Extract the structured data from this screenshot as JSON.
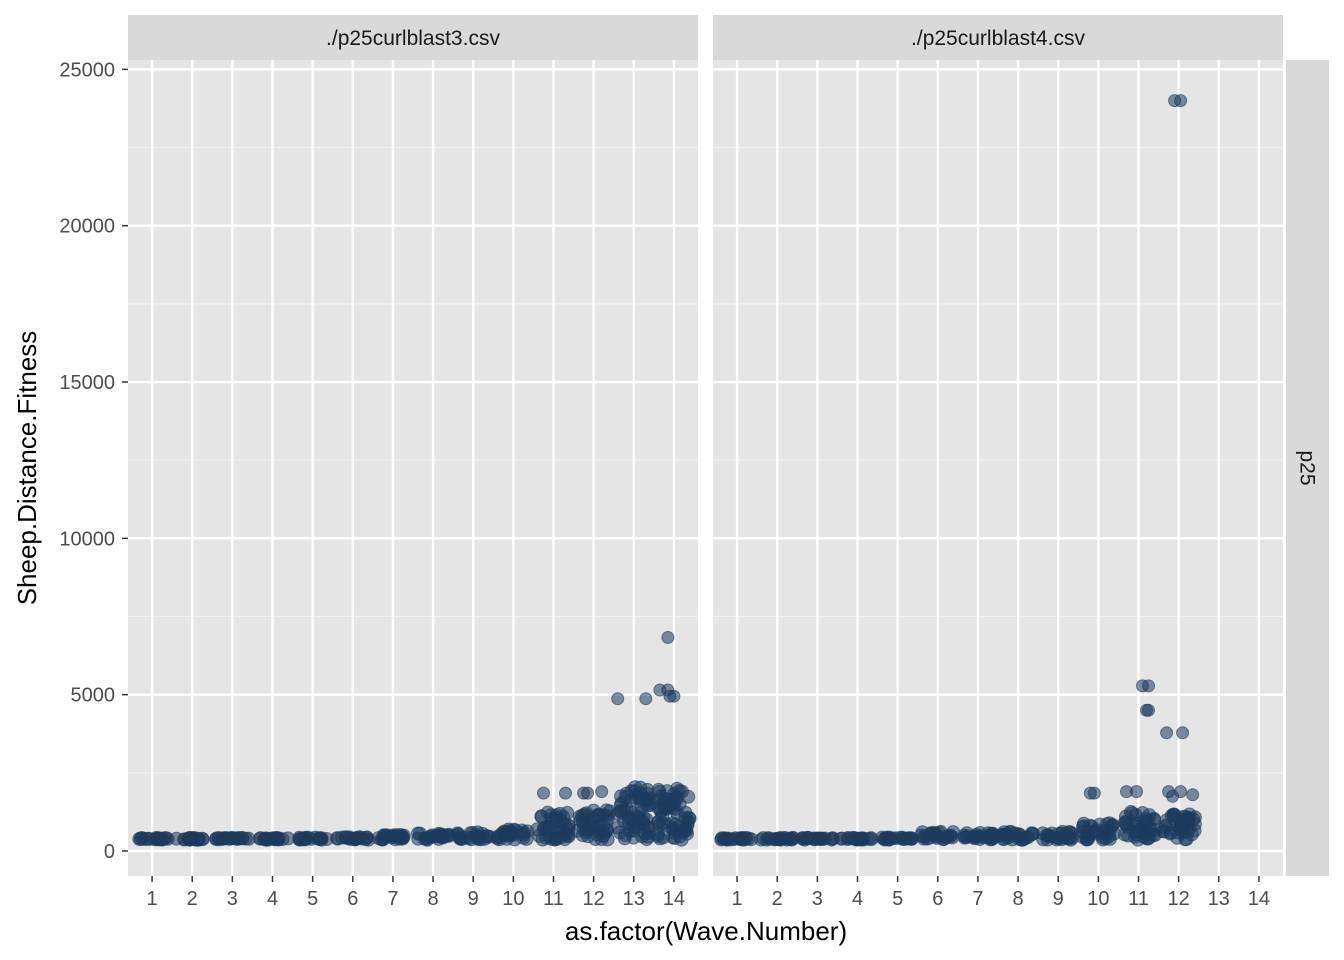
{
  "chart_data": {
    "type": "scatter",
    "xlabel": "as.factor(Wave.Number)",
    "ylabel": "Sheep.Distance.Fitness",
    "x_categories": [
      "1",
      "2",
      "3",
      "4",
      "5",
      "6",
      "7",
      "8",
      "9",
      "10",
      "11",
      "12",
      "13",
      "14"
    ],
    "y_ticks": [
      0,
      5000,
      10000,
      15000,
      20000,
      25000
    ],
    "ylim": [
      -800,
      25300
    ],
    "grid": true,
    "row_strip": "p25",
    "point_color": "#1c3a5e",
    "panel_bg": "#e5e5e5",
    "strip_bg": "#d9d9d9",
    "panels": [
      {
        "title": "./p25curlblast3.csv",
        "bands": [
          {
            "wave": 1,
            "y_min": 360,
            "y_max": 420
          },
          {
            "wave": 2,
            "y_min": 360,
            "y_max": 420
          },
          {
            "wave": 3,
            "y_min": 360,
            "y_max": 420
          },
          {
            "wave": 4,
            "y_min": 360,
            "y_max": 420
          },
          {
            "wave": 5,
            "y_min": 360,
            "y_max": 430
          },
          {
            "wave": 6,
            "y_min": 360,
            "y_max": 440
          },
          {
            "wave": 7,
            "y_min": 360,
            "y_max": 520
          },
          {
            "wave": 8,
            "y_min": 360,
            "y_max": 560
          },
          {
            "wave": 9,
            "y_min": 360,
            "y_max": 600
          },
          {
            "wave": 10,
            "y_min": 360,
            "y_max": 700
          },
          {
            "wave": 11,
            "y_min": 360,
            "y_max": 1250
          },
          {
            "wave": 12,
            "y_min": 360,
            "y_max": 1300
          },
          {
            "wave": 13,
            "y_min": 360,
            "y_max": 2100
          },
          {
            "wave": 14,
            "y_min": 360,
            "y_max": 2100
          }
        ],
        "outliers": [
          {
            "wave": 10.75,
            "y": 1850
          },
          {
            "wave": 11.3,
            "y": 1850
          },
          {
            "wave": 11.75,
            "y": 1850
          },
          {
            "wave": 11.85,
            "y": 1850
          },
          {
            "wave": 12.2,
            "y": 1900
          },
          {
            "wave": 12.6,
            "y": 4870
          },
          {
            "wave": 13.3,
            "y": 4870
          },
          {
            "wave": 13.65,
            "y": 5150
          },
          {
            "wave": 13.85,
            "y": 5150
          },
          {
            "wave": 13.85,
            "y": 6830
          },
          {
            "wave": 13.9,
            "y": 4950
          },
          {
            "wave": 14.0,
            "y": 4950
          }
        ]
      },
      {
        "title": "./p25curlblast4.csv",
        "bands": [
          {
            "wave": 1,
            "y_min": 360,
            "y_max": 420
          },
          {
            "wave": 2,
            "y_min": 360,
            "y_max": 420
          },
          {
            "wave": 3,
            "y_min": 360,
            "y_max": 420
          },
          {
            "wave": 4,
            "y_min": 360,
            "y_max": 420
          },
          {
            "wave": 5,
            "y_min": 360,
            "y_max": 440
          },
          {
            "wave": 6,
            "y_min": 360,
            "y_max": 620
          },
          {
            "wave": 7,
            "y_min": 360,
            "y_max": 600
          },
          {
            "wave": 8,
            "y_min": 360,
            "y_max": 620
          },
          {
            "wave": 9,
            "y_min": 360,
            "y_max": 620
          },
          {
            "wave": 10,
            "y_min": 360,
            "y_max": 900
          },
          {
            "wave": 11,
            "y_min": 360,
            "y_max": 1250
          },
          {
            "wave": 12,
            "y_min": 360,
            "y_max": 1250
          }
        ],
        "outliers": [
          {
            "wave": 0.65,
            "y": 400
          },
          {
            "wave": 9.8,
            "y": 1850
          },
          {
            "wave": 9.9,
            "y": 1850
          },
          {
            "wave": 10.95,
            "y": 1900
          },
          {
            "wave": 10.7,
            "y": 1900
          },
          {
            "wave": 11.1,
            "y": 5280
          },
          {
            "wave": 11.25,
            "y": 5280
          },
          {
            "wave": 11.2,
            "y": 4500
          },
          {
            "wave": 11.25,
            "y": 4500
          },
          {
            "wave": 11.7,
            "y": 3780
          },
          {
            "wave": 12.1,
            "y": 3780
          },
          {
            "wave": 11.75,
            "y": 1900
          },
          {
            "wave": 11.85,
            "y": 1750
          },
          {
            "wave": 12.05,
            "y": 1900
          },
          {
            "wave": 12.35,
            "y": 1800
          },
          {
            "wave": 11.9,
            "y": 24000
          },
          {
            "wave": 12.05,
            "y": 24000
          }
        ]
      }
    ]
  }
}
